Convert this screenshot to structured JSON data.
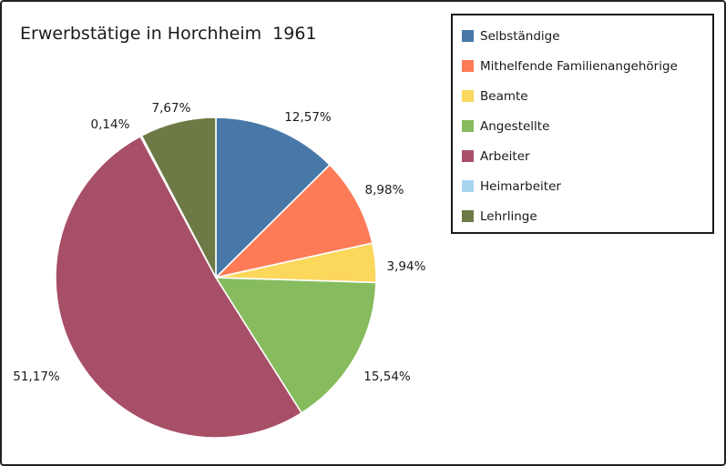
{
  "title": "Erwerbstätige in Horchheim  1961",
  "chart_data": {
    "type": "pie",
    "title": "Erwerbstätige in Horchheim  1961",
    "unit": "%",
    "decimal_separator": ",",
    "start_angle": "12-oclock",
    "direction": "clockwise",
    "legend_position": "upper-right",
    "slices": [
      {
        "label": "Selbständige",
        "value": 12.57,
        "display": "12,57%",
        "color": "#4878a8"
      },
      {
        "label": "Mithelfende Familienangehörige",
        "value": 8.98,
        "display": "8,98%",
        "color": "#fd7c57"
      },
      {
        "label": "Beamte",
        "value": 3.94,
        "display": "3,94%",
        "color": "#fbd75c"
      },
      {
        "label": "Angestellte",
        "value": 15.54,
        "display": "15,54%",
        "color": "#86bc5e"
      },
      {
        "label": "Arbeiter",
        "value": 51.17,
        "display": "51,17%",
        "color": "#a84f68"
      },
      {
        "label": "Heimarbeiter",
        "value": 0.14,
        "display": "0,14%",
        "color": "#a9d5f0"
      },
      {
        "label": "Lehrlinge",
        "value": 7.67,
        "display": "7,67%",
        "color": "#6e7a45"
      }
    ]
  }
}
